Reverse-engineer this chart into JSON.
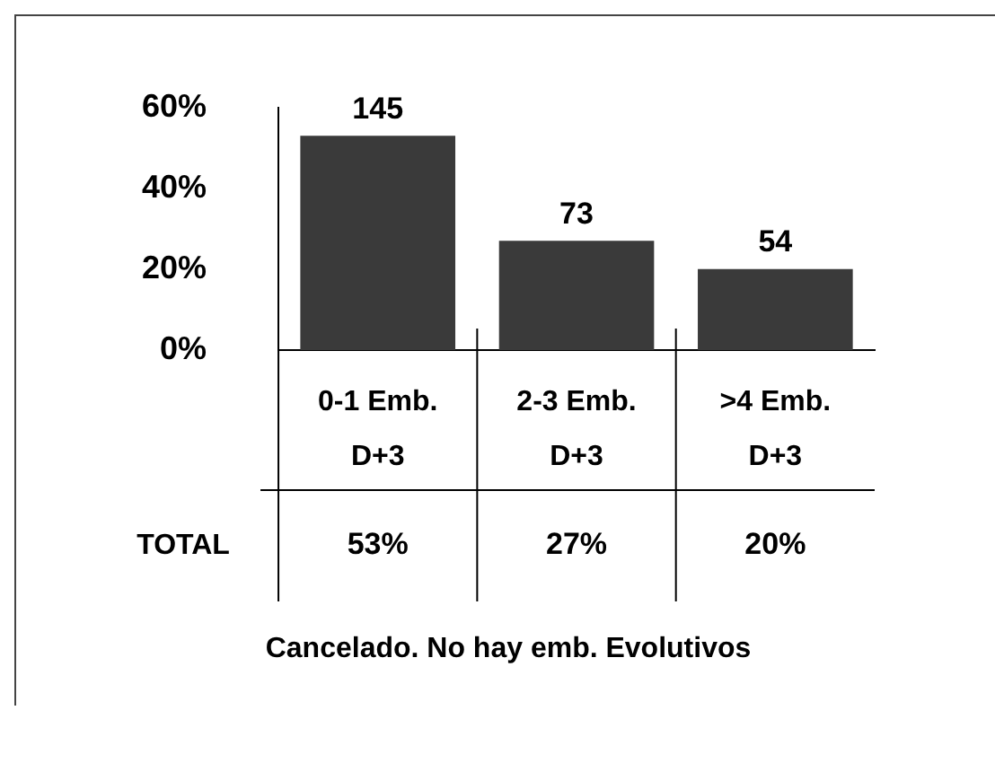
{
  "chart_data": {
    "type": "bar",
    "categories": [
      "0-1 Emb. D+3",
      "2-3 Emb. D+3",
      ">4 Emb. D+3"
    ],
    "values": [
      53,
      27,
      20
    ],
    "value_labels": [
      "53%",
      "27%",
      "20%"
    ],
    "color": "#3a3a3a",
    "ylim": [
      0,
      60
    ],
    "yticks": [
      {
        "value": 0,
        "label": "0%"
      },
      {
        "value": 20,
        "label": "20%"
      },
      {
        "value": 40,
        "label": "40%"
      },
      {
        "value": 60,
        "label": "60%"
      }
    ],
    "grid": false,
    "legend": false,
    "annotations": [
      "TOTAL",
      "Cancelado. No hay emb. Evolutivos",
      {
        "text": "145",
        "x": "0-1 Emb. D+3",
        "y": 53
      },
      {
        "text": "73",
        "x": "2-3 Emb. D+3",
        "y": 27
      },
      {
        "text": "54",
        "x": ">4 Emb. D+3",
        "y": 20
      }
    ]
  }
}
